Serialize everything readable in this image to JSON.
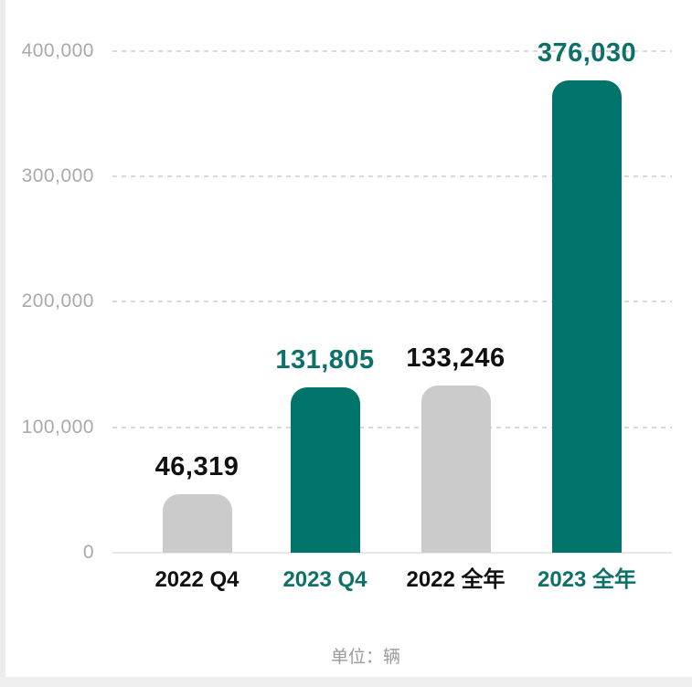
{
  "chart_data": {
    "type": "bar",
    "title": "",
    "categories": [
      "2022 Q4",
      "2023 Q4",
      "2022 全年",
      "2023 全年"
    ],
    "values": [
      46319,
      131805,
      133246,
      376030
    ],
    "value_labels": [
      "46,319",
      "131,805",
      "133,246",
      "376,030"
    ],
    "bar_colors": [
      "#cbcbcb",
      "#00736b",
      "#cbcbcb",
      "#00736b"
    ],
    "label_colors": [
      "#111111",
      "#0e7169",
      "#111111",
      "#0e7169"
    ],
    "ylim": [
      0,
      400000
    ],
    "y_ticks": [
      {
        "value": 400000,
        "label": "400,000"
      },
      {
        "value": 300000,
        "label": "300,000"
      },
      {
        "value": 200000,
        "label": "200,000"
      },
      {
        "value": 100000,
        "label": "100,000"
      },
      {
        "value": 0,
        "label": "0"
      }
    ],
    "grid": "dashed-horizontal",
    "legend": "none",
    "unit_note": "单位：辆"
  },
  "colors": {
    "teal": "#00736b",
    "teal_text": "#0e7169",
    "gray_bar": "#cbcbcb",
    "axis_text": "#a9a9a9",
    "black_text": "#111111",
    "gridline": "#d9d9d9",
    "baseline": "#e7e7e7",
    "note_text": "#9b9b9b",
    "edge_strip": "#ececec"
  }
}
